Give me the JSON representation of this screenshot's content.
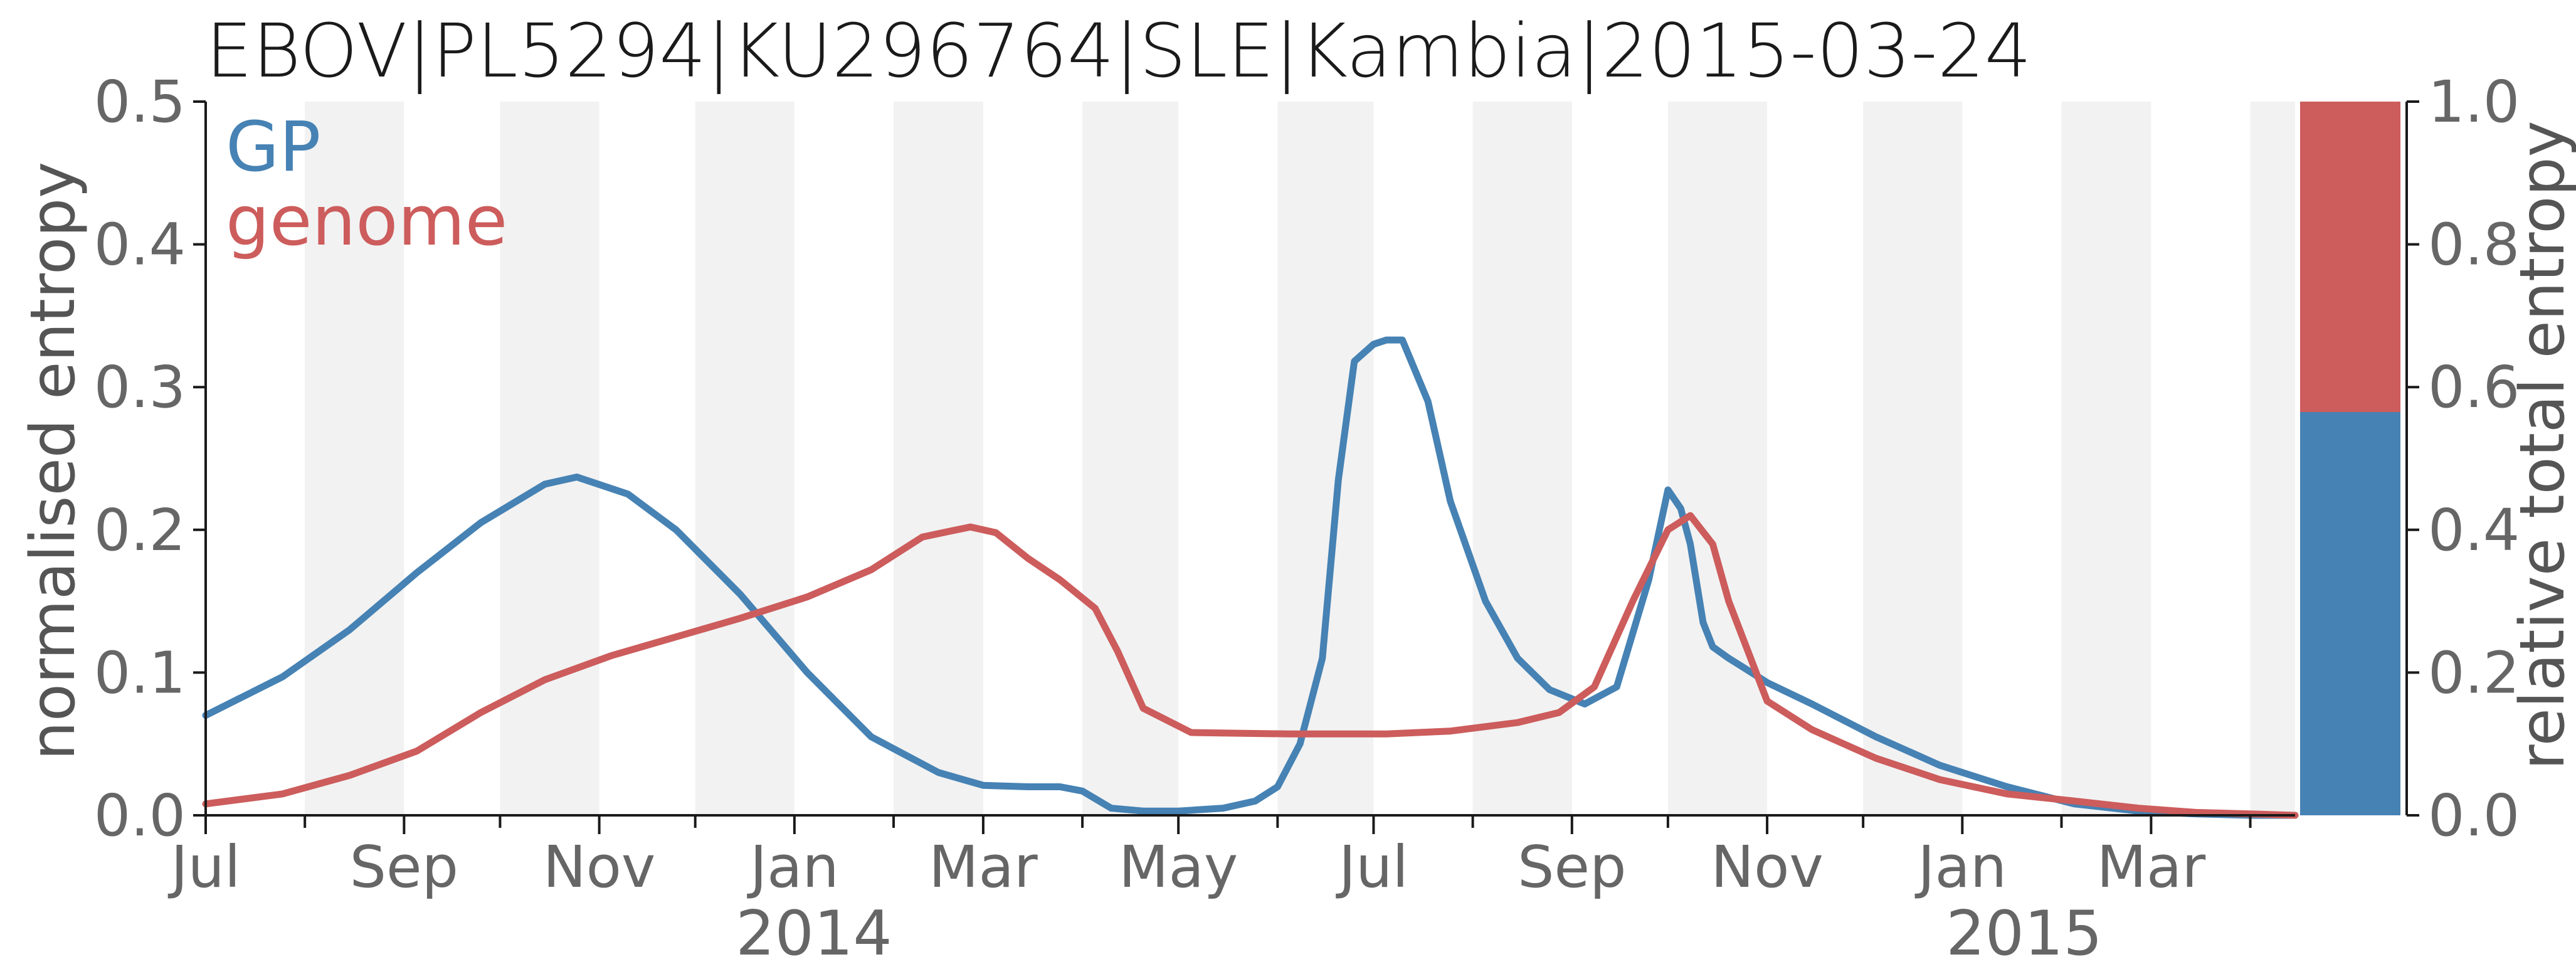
{
  "colors": {
    "gp": "#4682b4",
    "genome": "#cd5c5c",
    "stripe": "#f2f2f2",
    "axis": "#1a1a1a"
  },
  "chart_data": {
    "type": "line",
    "title": "EBOV|PL5294|KU296764|SLE|Kambia|2015-03-24",
    "ylabel": "normalised entropy",
    "y2label": "relative total entropy",
    "ylim": [
      0,
      0.5
    ],
    "y2lim": [
      0,
      1
    ],
    "yticks": [
      "0.0",
      "0.1",
      "0.2",
      "0.3",
      "0.4",
      "0.5"
    ],
    "y2ticks": [
      "0.0",
      "0.2",
      "0.4",
      "0.6",
      "0.8",
      "1.0"
    ],
    "xlim": [
      "2013-07-01",
      "2015-04-15"
    ],
    "month_ticks": [
      "Jul",
      "Sep",
      "Nov",
      "Jan",
      "Mar",
      "May",
      "Jul",
      "Sep",
      "Nov",
      "Jan",
      "Mar"
    ],
    "year_labels": [
      "2014",
      "2015"
    ],
    "grid": false,
    "shaded_bands": "alternating months",
    "legend_position": "top-left",
    "series": [
      {
        "name": "GP",
        "x": [
          "2013-07-01",
          "2013-07-25",
          "2013-08-15",
          "2013-09-05",
          "2013-09-25",
          "2013-10-15",
          "2013-10-25",
          "2013-11-10",
          "2013-11-25",
          "2013-12-15",
          "2014-01-05",
          "2014-01-25",
          "2014-02-15",
          "2014-03-01",
          "2014-03-15",
          "2014-03-25",
          "2014-04-01",
          "2014-04-10",
          "2014-04-20",
          "2014-05-01",
          "2014-05-15",
          "2014-05-25",
          "2014-06-01",
          "2014-06-08",
          "2014-06-15",
          "2014-06-20",
          "2014-06-25",
          "2014-07-01",
          "2014-07-05",
          "2014-07-10",
          "2014-07-18",
          "2014-07-25",
          "2014-08-05",
          "2014-08-15",
          "2014-08-25",
          "2014-09-05",
          "2014-09-15",
          "2014-09-25",
          "2014-10-01",
          "2014-10-05",
          "2014-10-08",
          "2014-10-12",
          "2014-10-15",
          "2014-10-20",
          "2014-10-25",
          "2014-11-01",
          "2014-11-15",
          "2014-12-05",
          "2014-12-25",
          "2015-01-15",
          "2015-02-05",
          "2015-02-25",
          "2015-03-15",
          "2015-04-01",
          "2015-04-15"
        ],
        "values": [
          0.07,
          0.097,
          0.13,
          0.17,
          0.205,
          0.232,
          0.237,
          0.225,
          0.2,
          0.155,
          0.1,
          0.055,
          0.03,
          0.021,
          0.02,
          0.02,
          0.017,
          0.005,
          0.003,
          0.003,
          0.005,
          0.01,
          0.02,
          0.05,
          0.11,
          0.235,
          0.318,
          0.33,
          0.333,
          0.333,
          0.29,
          0.22,
          0.15,
          0.11,
          0.088,
          0.078,
          0.09,
          0.165,
          0.228,
          0.215,
          0.19,
          0.135,
          0.118,
          0.11,
          0.103,
          0.093,
          0.078,
          0.055,
          0.035,
          0.02,
          0.008,
          0.003,
          0.001,
          0.0,
          0.0
        ]
      },
      {
        "name": "genome",
        "x": [
          "2013-07-01",
          "2013-07-25",
          "2013-08-15",
          "2013-09-05",
          "2013-09-25",
          "2013-10-15",
          "2013-11-05",
          "2013-11-25",
          "2013-12-15",
          "2014-01-05",
          "2014-01-25",
          "2014-02-10",
          "2014-02-25",
          "2014-03-05",
          "2014-03-15",
          "2014-03-25",
          "2014-04-05",
          "2014-04-12",
          "2014-04-20",
          "2014-05-05",
          "2014-06-05",
          "2014-07-05",
          "2014-07-25",
          "2014-08-15",
          "2014-08-28",
          "2014-09-08",
          "2014-09-20",
          "2014-10-01",
          "2014-10-08",
          "2014-10-15",
          "2014-10-20",
          "2014-11-01",
          "2014-11-15",
          "2014-12-05",
          "2014-12-25",
          "2015-01-15",
          "2015-02-05",
          "2015-02-25",
          "2015-03-15",
          "2015-04-01",
          "2015-04-15"
        ],
        "values": [
          0.008,
          0.015,
          0.028,
          0.045,
          0.072,
          0.095,
          0.112,
          0.125,
          0.138,
          0.153,
          0.172,
          0.195,
          0.202,
          0.198,
          0.18,
          0.165,
          0.145,
          0.115,
          0.075,
          0.058,
          0.057,
          0.057,
          0.059,
          0.065,
          0.072,
          0.09,
          0.15,
          0.2,
          0.21,
          0.19,
          0.15,
          0.08,
          0.06,
          0.04,
          0.025,
          0.015,
          0.01,
          0.005,
          0.002,
          0.001,
          0.0
        ]
      }
    ],
    "relative_total_entropy": {
      "categories": [
        "GP",
        "genome"
      ],
      "values": [
        0.565,
        0.435
      ]
    }
  }
}
